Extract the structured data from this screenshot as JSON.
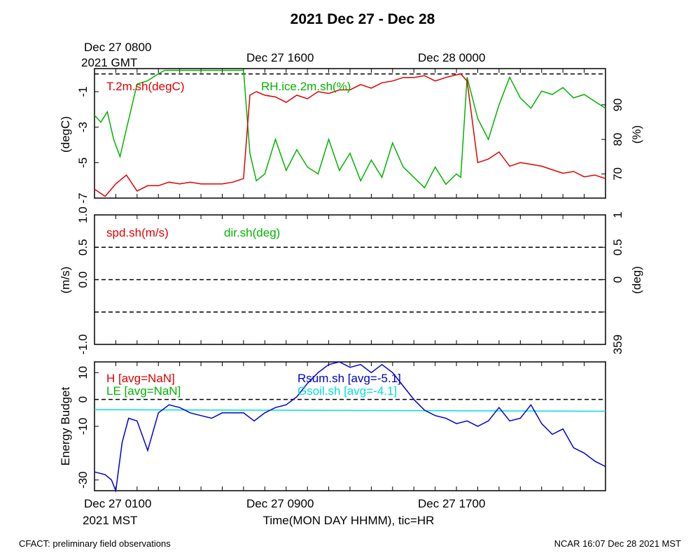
{
  "title": "2021 Dec 27 - Dec 28",
  "footer": {
    "left": "CFACT: preliminary field observations",
    "right": "NCAR 16:07 Dec 28 2021 MST"
  },
  "top_axis": {
    "labels": [
      {
        "line1": "Dec 27 0800",
        "line2": "2021 GMT"
      },
      {
        "line1": "Dec 27 1600",
        "line2": ""
      },
      {
        "line1": "Dec 28 0000",
        "line2": ""
      }
    ]
  },
  "bottom_axis": {
    "labels": [
      {
        "line1": "Dec 27 0100",
        "line2": "2021 MST"
      },
      {
        "line1": "Dec 27 0900",
        "line2": ""
      },
      {
        "line1": "Dec 27 1700",
        "line2": ""
      }
    ],
    "title": "Time(MON DAY HHMM), tic=HR"
  },
  "colors": {
    "red": "#e00000",
    "green": "#00b400",
    "blue": "#0000d0",
    "cyan": "#00dede",
    "black": "#000000"
  },
  "chart_data": [
    {
      "type": "line",
      "panel": "temperature-humidity",
      "x_unit": "hours since Dec 27 0100 MST",
      "xlim": [
        0,
        24
      ],
      "ylabel": "(degC)",
      "ylim": [
        -7,
        0.3
      ],
      "yticks": [
        -7,
        -5,
        -3,
        -1
      ],
      "ylabel_right": "(%)",
      "ylim_right": [
        63,
        100.5
      ],
      "yticks_right": [
        70,
        80,
        90
      ],
      "reference_lines": [
        {
          "axis": "left",
          "value": 0,
          "style": "dashed"
        }
      ],
      "series": [
        {
          "name": "T.2m.sh(degC)",
          "color": "red",
          "axis": "left",
          "x": [
            0,
            0.5,
            1,
            1.5,
            2,
            2.5,
            3,
            3.5,
            4,
            4.5,
            5,
            5.5,
            6,
            6.5,
            7,
            7.3,
            7.6,
            8,
            8.5,
            9,
            9.5,
            10,
            10.5,
            11,
            11.5,
            12,
            12.5,
            13,
            13.5,
            14,
            14.5,
            15,
            15.5,
            16,
            16.5,
            17,
            17.2,
            17.5,
            18,
            18.5,
            19,
            19.5,
            20,
            20.5,
            21,
            21.5,
            22,
            22.5,
            23,
            23.5,
            24
          ],
          "y": [
            -6.5,
            -6.9,
            -6.2,
            -5.7,
            -6.6,
            -6.3,
            -6.3,
            -6.1,
            -6.2,
            -6.1,
            -6.2,
            -6.2,
            -6.2,
            -6.1,
            -5.9,
            -1.2,
            -1.0,
            -1.2,
            -1.3,
            -1.6,
            -1.2,
            -1.4,
            -1.0,
            -1.1,
            -0.9,
            -0.9,
            -0.6,
            -0.8,
            -0.5,
            -0.4,
            -0.2,
            -0.2,
            -0.1,
            -0.4,
            -0.2,
            -0.05,
            0.0,
            -0.4,
            -5.0,
            -4.8,
            -4.4,
            -5.2,
            -5.0,
            -5.1,
            -5.2,
            -5.4,
            -5.6,
            -5.5,
            -5.8,
            -5.7,
            -5.9
          ]
        },
        {
          "name": "RH.ice.2m.sh(%)",
          "color": "green",
          "axis": "right",
          "x": [
            0,
            0.3,
            0.6,
            0.9,
            1.2,
            1.5,
            2,
            2.5,
            3,
            3.3,
            3.6,
            4,
            4.5,
            5,
            5.5,
            6,
            6.5,
            7,
            7.3,
            7.6,
            8,
            8.5,
            9,
            9.5,
            10,
            10.5,
            11,
            11.5,
            12,
            12.5,
            13,
            13.5,
            14,
            14.5,
            15,
            15.5,
            16,
            16.5,
            17,
            17.2,
            17.5,
            18,
            18.5,
            19,
            19.5,
            20,
            20.5,
            21,
            21.5,
            22,
            22.5,
            23,
            23.5,
            24
          ],
          "y": [
            87,
            85,
            88,
            80,
            75,
            83,
            96,
            97,
            99,
            100,
            100,
            100,
            100,
            100,
            100,
            100,
            100,
            100,
            76,
            68,
            70,
            80,
            71,
            77,
            72,
            70,
            80,
            71,
            76,
            68,
            74,
            69,
            79,
            72,
            69,
            66,
            72,
            67,
            70,
            69,
            98,
            86,
            80,
            90,
            98,
            92,
            89,
            94,
            93,
            95,
            92,
            93,
            91,
            89
          ]
        }
      ]
    },
    {
      "type": "line",
      "panel": "wind",
      "xlim": [
        0,
        24
      ],
      "ylabel": "(m/s)",
      "ylim": [
        -1.0,
        1.0
      ],
      "yticks": [
        -1.0,
        -0.5,
        0.0,
        0.5,
        1.0
      ],
      "ytick_labels": [
        "-1.0",
        "",
        "0.0",
        "0.5",
        "1.0"
      ],
      "ylabel_right": "(deg)",
      "yticks_right_labels": [
        "1",
        "0.5",
        "0",
        "359"
      ],
      "reference_lines": [
        {
          "axis": "left",
          "value": 0.5,
          "style": "dashed"
        },
        {
          "axis": "left",
          "value": 0.0,
          "style": "dashed"
        },
        {
          "axis": "left",
          "value": -0.5,
          "style": "dashed"
        }
      ],
      "series": [
        {
          "name": "spd.sh(m/s)",
          "color": "red",
          "values": []
        },
        {
          "name": "dir.sh(deg)",
          "color": "green",
          "values": []
        }
      ]
    },
    {
      "type": "line",
      "panel": "energy-budget",
      "xlim": [
        0,
        24
      ],
      "ylabel": "Energy Budget",
      "ylim": [
        -34,
        14
      ],
      "yticks": [
        -30,
        -10,
        0,
        10
      ],
      "reference_lines": [
        {
          "axis": "left",
          "value": 0,
          "style": "dashed"
        }
      ],
      "series": [
        {
          "name": "H [avg=NaN]",
          "color": "red",
          "values": []
        },
        {
          "name": "LE [avg=NaN]",
          "color": "green",
          "values": []
        },
        {
          "name": "Rsum.sh [avg=-5.1]",
          "color": "blue",
          "x": [
            0,
            0.5,
            0.8,
            1,
            1.3,
            1.6,
            2,
            2.5,
            3,
            3.5,
            4,
            4.5,
            5,
            5.5,
            6,
            6.5,
            7,
            7.5,
            8,
            8.5,
            9,
            9.5,
            10,
            10.5,
            11,
            11.5,
            12,
            12.5,
            13,
            13.5,
            14,
            14.5,
            15,
            15.5,
            16,
            16.5,
            17,
            17.5,
            18,
            18.5,
            19,
            19.5,
            20,
            20.5,
            21,
            21.5,
            22,
            22.5,
            23,
            23.5,
            24
          ],
          "y": [
            -27,
            -28,
            -30,
            -34,
            -16,
            -7,
            -8,
            -19,
            -5,
            -2,
            -3,
            -5,
            -6,
            -7,
            -5,
            -5,
            -5,
            -8,
            -5,
            -3,
            -2,
            1,
            6,
            10,
            13,
            14,
            12,
            13,
            10,
            13,
            10,
            5,
            0,
            -4,
            -6,
            -7,
            -9,
            -8,
            -10,
            -8,
            -3,
            -8,
            -7,
            -2,
            -9,
            -13,
            -11,
            -18,
            -20,
            -23,
            -25
          ]
        },
        {
          "name": "Gsoil.sh [avg=-4.1]",
          "color": "cyan",
          "x": [
            0,
            24
          ],
          "y": [
            -3.8,
            -4.4
          ]
        }
      ]
    }
  ]
}
